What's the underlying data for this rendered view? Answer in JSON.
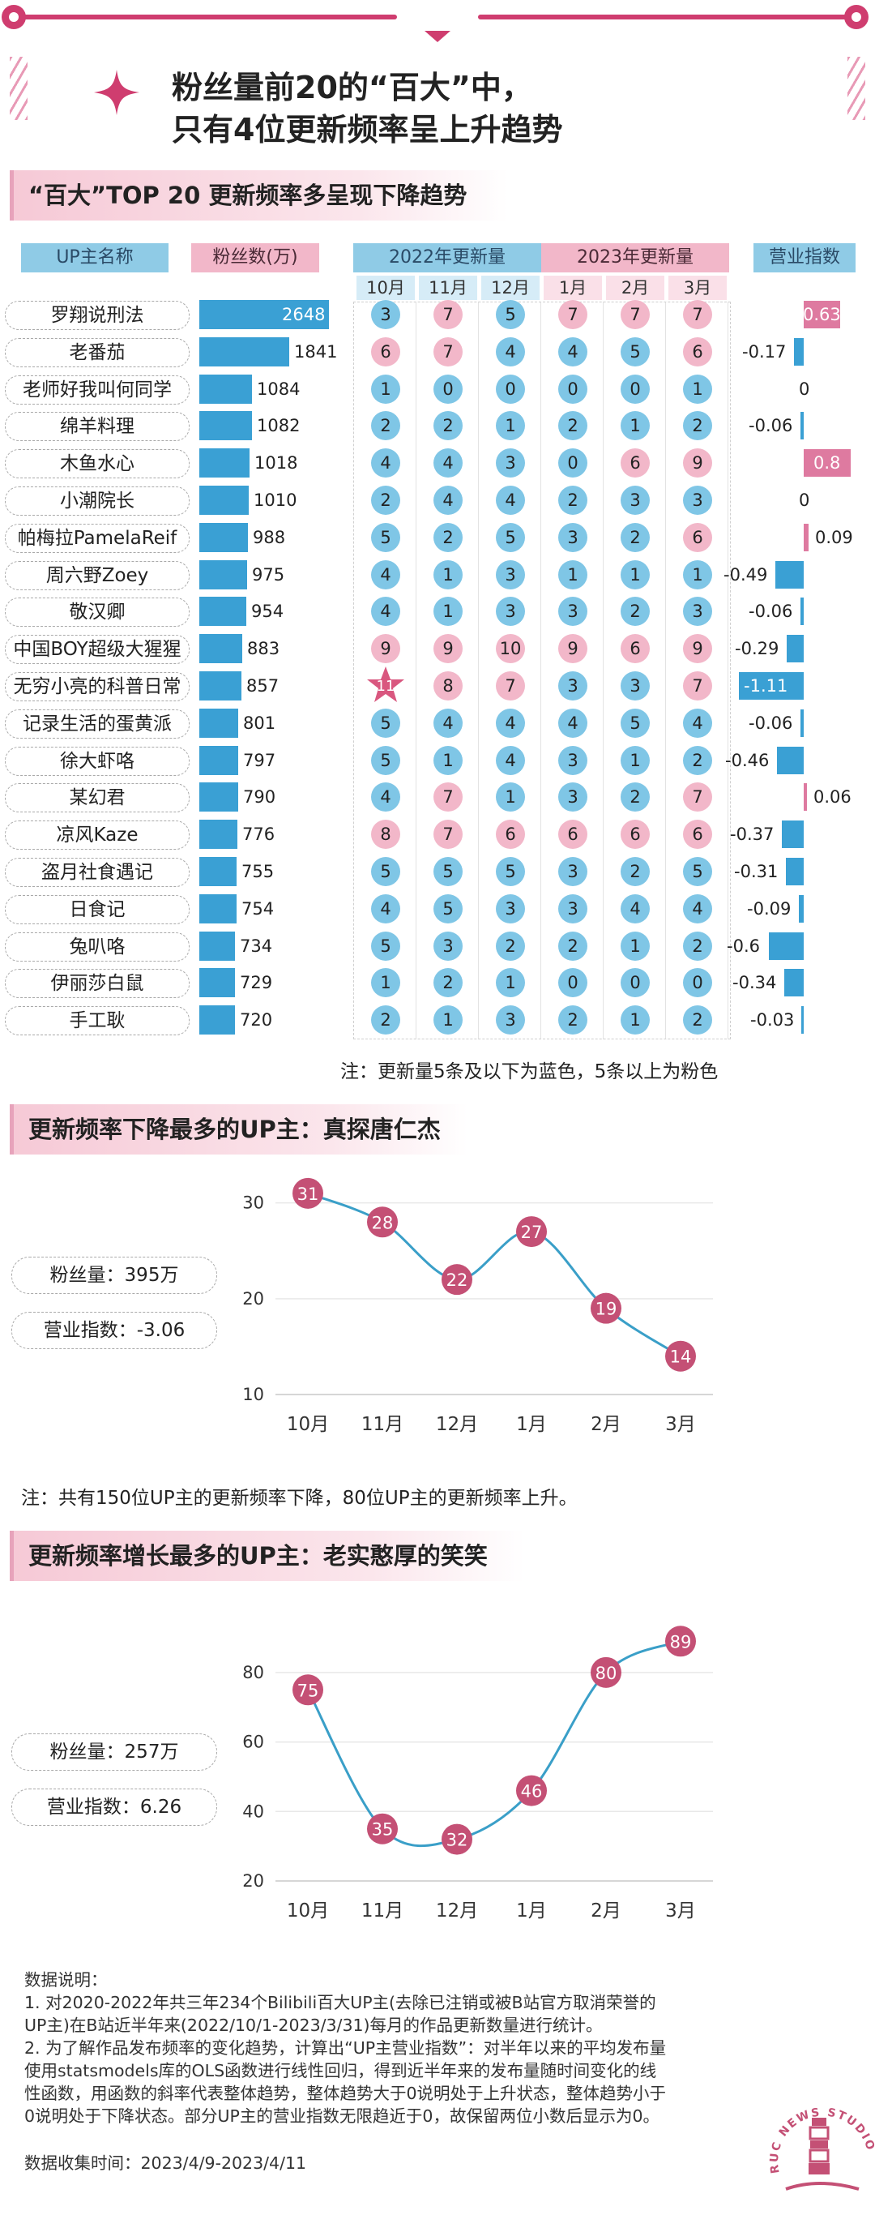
{
  "headline": {
    "line1": "粉丝量前20的“百大”中，",
    "line2": "只有4位更新频率呈上升趋势"
  },
  "section1": {
    "title": "“百大”TOP 20 更新频率多呈现下降趋势"
  },
  "table": {
    "col_name": "UP主名称",
    "col_fans": "粉丝数(万)",
    "col_2022": "2022年更新量",
    "col_2023": "2023年更新量",
    "col_index": "营业指数",
    "months": [
      "10月",
      "11月",
      "12月",
      "1月",
      "2月",
      "3月"
    ],
    "rows": [
      {
        "name": "罗翔说刑法",
        "fans": "2648",
        "fans_num": 2648,
        "updates": [
          3,
          7,
          5,
          7,
          7,
          7
        ],
        "index": "0.63",
        "index_num": 0.63
      },
      {
        "name": "老番茄",
        "fans": "1841",
        "fans_num": 1841,
        "updates": [
          6,
          7,
          4,
          4,
          5,
          6
        ],
        "index": "-0.17",
        "index_num": -0.17
      },
      {
        "name": "老师好我叫何同学",
        "fans": "1084",
        "fans_num": 1084,
        "updates": [
          1,
          0,
          0,
          0,
          0,
          1
        ],
        "index": "0",
        "index_num": 0
      },
      {
        "name": "绵羊料理",
        "fans": "1082",
        "fans_num": 1082,
        "updates": [
          2,
          2,
          1,
          2,
          1,
          2
        ],
        "index": "-0.06",
        "index_num": -0.06
      },
      {
        "name": "木鱼水心",
        "fans": "1018",
        "fans_num": 1018,
        "updates": [
          4,
          4,
          3,
          0,
          6,
          9
        ],
        "index": "0.8",
        "index_num": 0.8
      },
      {
        "name": "小潮院长",
        "fans": "1010",
        "fans_num": 1010,
        "updates": [
          2,
          4,
          4,
          2,
          3,
          3
        ],
        "index": "0",
        "index_num": 0
      },
      {
        "name": "帕梅拉PamelaReif",
        "fans": "988",
        "fans_num": 988,
        "updates": [
          5,
          2,
          5,
          3,
          2,
          6
        ],
        "index": "0.09",
        "index_num": 0.09
      },
      {
        "name": "周六野Zoey",
        "fans": "975",
        "fans_num": 975,
        "updates": [
          4,
          1,
          3,
          1,
          1,
          1
        ],
        "index": "-0.49",
        "index_num": -0.49
      },
      {
        "name": "敬汉卿",
        "fans": "954",
        "fans_num": 954,
        "updates": [
          4,
          1,
          3,
          3,
          2,
          3
        ],
        "index": "-0.06",
        "index_num": -0.06
      },
      {
        "name": "中国BOY超级大猩猩",
        "fans": "883",
        "fans_num": 883,
        "updates": [
          9,
          9,
          10,
          9,
          6,
          9
        ],
        "index": "-0.29",
        "index_num": -0.29
      },
      {
        "name": "无穷小亮的科普日常",
        "fans": "857",
        "fans_num": 857,
        "updates": [
          11,
          8,
          7,
          3,
          3,
          7
        ],
        "index": "-1.11",
        "index_num": -1.11
      },
      {
        "name": "记录生活的蛋黄派",
        "fans": "801",
        "fans_num": 801,
        "updates": [
          5,
          4,
          4,
          4,
          5,
          4
        ],
        "index": "-0.06",
        "index_num": -0.06
      },
      {
        "name": "徐大虾咯",
        "fans": "797",
        "fans_num": 797,
        "updates": [
          5,
          1,
          4,
          3,
          1,
          2
        ],
        "index": "-0.46",
        "index_num": -0.46
      },
      {
        "name": "某幻君",
        "fans": "790",
        "fans_num": 790,
        "updates": [
          4,
          7,
          1,
          3,
          2,
          7
        ],
        "index": "0.06",
        "index_num": 0.06
      },
      {
        "name": "凉风Kaze",
        "fans": "776",
        "fans_num": 776,
        "updates": [
          8,
          7,
          6,
          6,
          6,
          6
        ],
        "index": "-0.37",
        "index_num": -0.37
      },
      {
        "name": "盗月社食遇记",
        "fans": "755",
        "fans_num": 755,
        "updates": [
          5,
          5,
          5,
          3,
          2,
          5
        ],
        "index": "-0.31",
        "index_num": -0.31
      },
      {
        "name": "日食记",
        "fans": "754",
        "fans_num": 754,
        "updates": [
          4,
          5,
          3,
          3,
          4,
          4
        ],
        "index": "-0.09",
        "index_num": -0.09
      },
      {
        "name": "兔叭咯",
        "fans": "734",
        "fans_num": 734,
        "updates": [
          5,
          3,
          2,
          2,
          1,
          2
        ],
        "index": "-0.6",
        "index_num": -0.6
      },
      {
        "name": "伊丽莎白鼠",
        "fans": "729",
        "fans_num": 729,
        "updates": [
          1,
          2,
          1,
          0,
          0,
          0
        ],
        "index": "-0.34",
        "index_num": -0.34
      },
      {
        "name": "手工耿",
        "fans": "720",
        "fans_num": 720,
        "updates": [
          2,
          1,
          3,
          2,
          1,
          2
        ],
        "index": "-0.03",
        "index_num": -0.03
      }
    ],
    "note": "注：更新量5条及以下为蓝色，5条以上为粉色"
  },
  "section2": {
    "title": "更新频率下降最多的UP主：真探唐仁杰",
    "fans": "粉丝量：395万",
    "index": "营业指数：-3.06"
  },
  "note2": "注：共有150位UP主的更新频率下降，80位UP主的更新频率上升。",
  "section3": {
    "title": "更新频率增长最多的UP主：老实憨厚的笑笑",
    "fans": "粉丝量：257万",
    "index": "营业指数：6.26"
  },
  "datanote": {
    "l1": "数据说明：",
    "l2": "1. 对2020-2022年共三年234个Bilibili百大UP主(去除已注销或被B站官方取消荣誉的",
    "l3": "UP主)在B站近半年来(2022/10/1-2023/3/31)每月的作品更新数量进行统计。",
    "l4": "2. 为了解作品发布频率的变化趋势，计算出“UP主营业指数”：对半年以来的平均发布量",
    "l5": "使用statsmodels库的OLS函数进行线性回归，得到近半年来的发布量随时间变化的线",
    "l6": "性函数，用函数的斜率代表整体趋势，整体趋势大于0说明处于上升状态，整体趋势小于",
    "l7": "0说明处于下降状态。部分UP主的营业指数无限趋近于0，故保留两位小数后显示为0。",
    "l8": "数据收集时间：2023/4/9-2023/4/11"
  },
  "logo": {
    "text": "RUC NEWS STUDIO"
  },
  "chart_data": [
    {
      "type": "table",
      "title": "“百大”TOP 20 更新频率多呈现下降趋势",
      "columns": [
        "UP主名称",
        "粉丝数(万)",
        "2022年10月",
        "2022年11月",
        "2022年12月",
        "2023年1月",
        "2023年2月",
        "2023年3月",
        "营业指数"
      ],
      "note": "更新量5条及以下为蓝色，5条以上为粉色"
    },
    {
      "type": "line",
      "title": "更新频率下降最多的UP主：真探唐仁杰",
      "categories": [
        "10月",
        "11月",
        "12月",
        "1月",
        "2月",
        "3月"
      ],
      "values": [
        31,
        28,
        22,
        27,
        19,
        14
      ],
      "yticks": [
        10,
        20,
        30
      ],
      "ylim": [
        10,
        32
      ]
    },
    {
      "type": "line",
      "title": "更新频率增长最多的UP主：老实憨厚的笑笑",
      "categories": [
        "10月",
        "11月",
        "12月",
        "1月",
        "2月",
        "3月"
      ],
      "values": [
        75,
        35,
        32,
        46,
        80,
        89
      ],
      "yticks": [
        20,
        40,
        60,
        80
      ],
      "ylim": [
        20,
        90
      ]
    }
  ],
  "colors": {
    "blue": "#3aa0d4",
    "light_blue": "#7fc6e6",
    "pink": "#de7aa0",
    "light_pink": "#f2b7c9",
    "accent": "#cf3d6f",
    "line": "#3a9fc8",
    "marker": "#c45075"
  }
}
